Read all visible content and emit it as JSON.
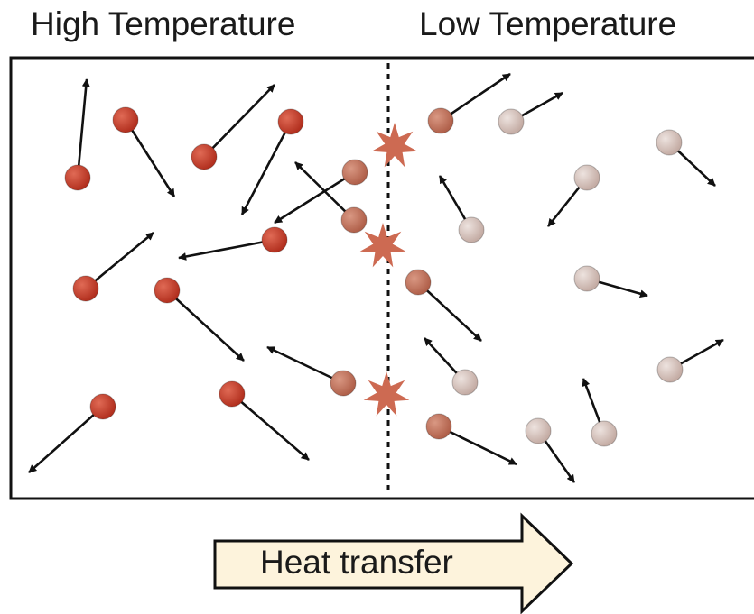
{
  "labels": {
    "high_temperature": "High Temperature",
    "low_temperature": "Low Temperature",
    "heat_transfer": "Heat transfer"
  },
  "colors": {
    "hot_molecule": "#b2301f",
    "warm_molecule": "#b0604a",
    "cool_molecule": "#c4aca4",
    "collision_star": "#cd6a52",
    "arrow_fill": "#fdf3dc",
    "outline": "#111111"
  },
  "icons": {
    "molecule": "sphere-molecule-icon",
    "collision": "collision-star-icon",
    "velocity": "velocity-arrow-icon"
  }
}
